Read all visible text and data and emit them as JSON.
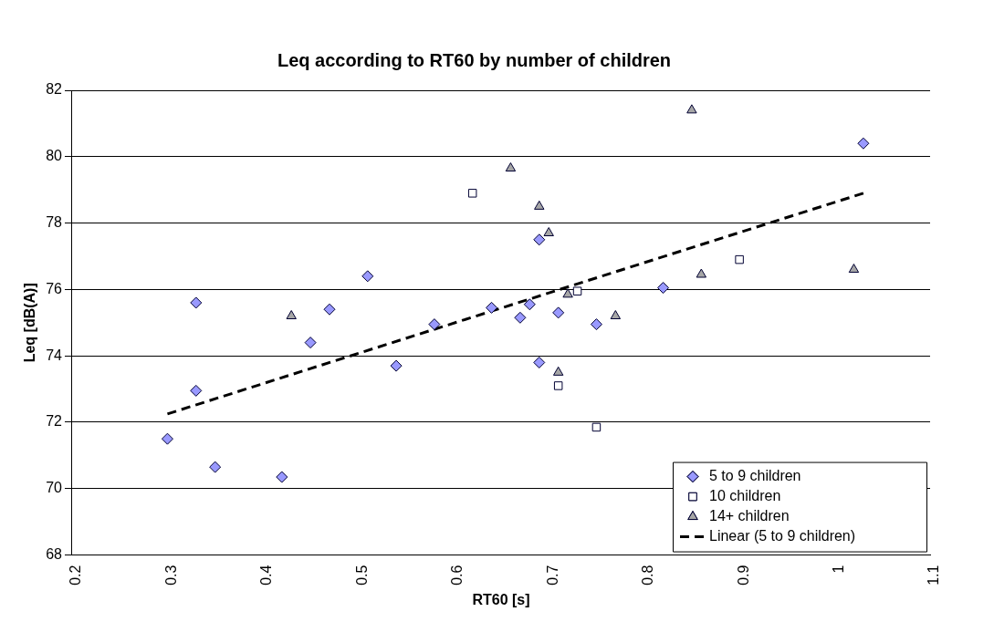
{
  "chart_data": {
    "type": "scatter",
    "title": "Leq according to RT60 by number of children",
    "xlabel": "RT60 [s]",
    "ylabel": "Leq [dB(A)]",
    "xlim": [
      0.2,
      1.1
    ],
    "xticks": [
      0.2,
      0.3,
      0.4,
      0.5,
      0.6,
      0.7,
      0.8,
      0.9,
      1,
      1.1
    ],
    "ylim": [
      68,
      82
    ],
    "yticks": [
      68,
      70,
      72,
      74,
      76,
      78,
      80,
      82
    ],
    "grid": "y",
    "legend": "bottom right",
    "series": [
      {
        "name": "5 to 9 children",
        "color": "#9999ff",
        "marker": "diamond",
        "x": [
          0.3,
          0.33,
          0.33,
          0.35,
          0.42,
          0.45,
          0.47,
          0.51,
          0.54,
          0.58,
          0.64,
          0.69,
          0.68,
          0.67,
          0.71,
          0.69,
          0.75,
          0.82,
          1.03
        ],
        "values": [
          71.5,
          72.95,
          75.6,
          70.65,
          70.35,
          74.4,
          75.4,
          76.4,
          73.7,
          74.95,
          75.45,
          77.5,
          75.55,
          75.15,
          75.3,
          73.8,
          74.95,
          76.05,
          80.4
        ]
      },
      {
        "name": "10 children",
        "color": "#ffffff",
        "marker": "square",
        "x": [
          0.62,
          0.73,
          0.71,
          0.75,
          0.9
        ],
        "values": [
          78.9,
          75.95,
          73.1,
          71.85,
          76.9
        ]
      },
      {
        "name": "14+ children",
        "color": "#a6a6a6",
        "marker": "triangle",
        "x": [
          0.43,
          0.66,
          0.69,
          0.7,
          0.72,
          0.77,
          0.71,
          0.85,
          0.86,
          1.02
        ],
        "values": [
          75.2,
          79.65,
          78.5,
          77.7,
          75.85,
          75.2,
          73.5,
          81.4,
          76.45,
          76.6
        ]
      },
      {
        "name": "Linear (5 to 9 children)",
        "type": "line",
        "color": "#000000",
        "marker": "none",
        "line_style": "dashed",
        "x": [
          0.3,
          1.03
        ],
        "values": [
          72.25,
          78.9
        ]
      }
    ]
  }
}
